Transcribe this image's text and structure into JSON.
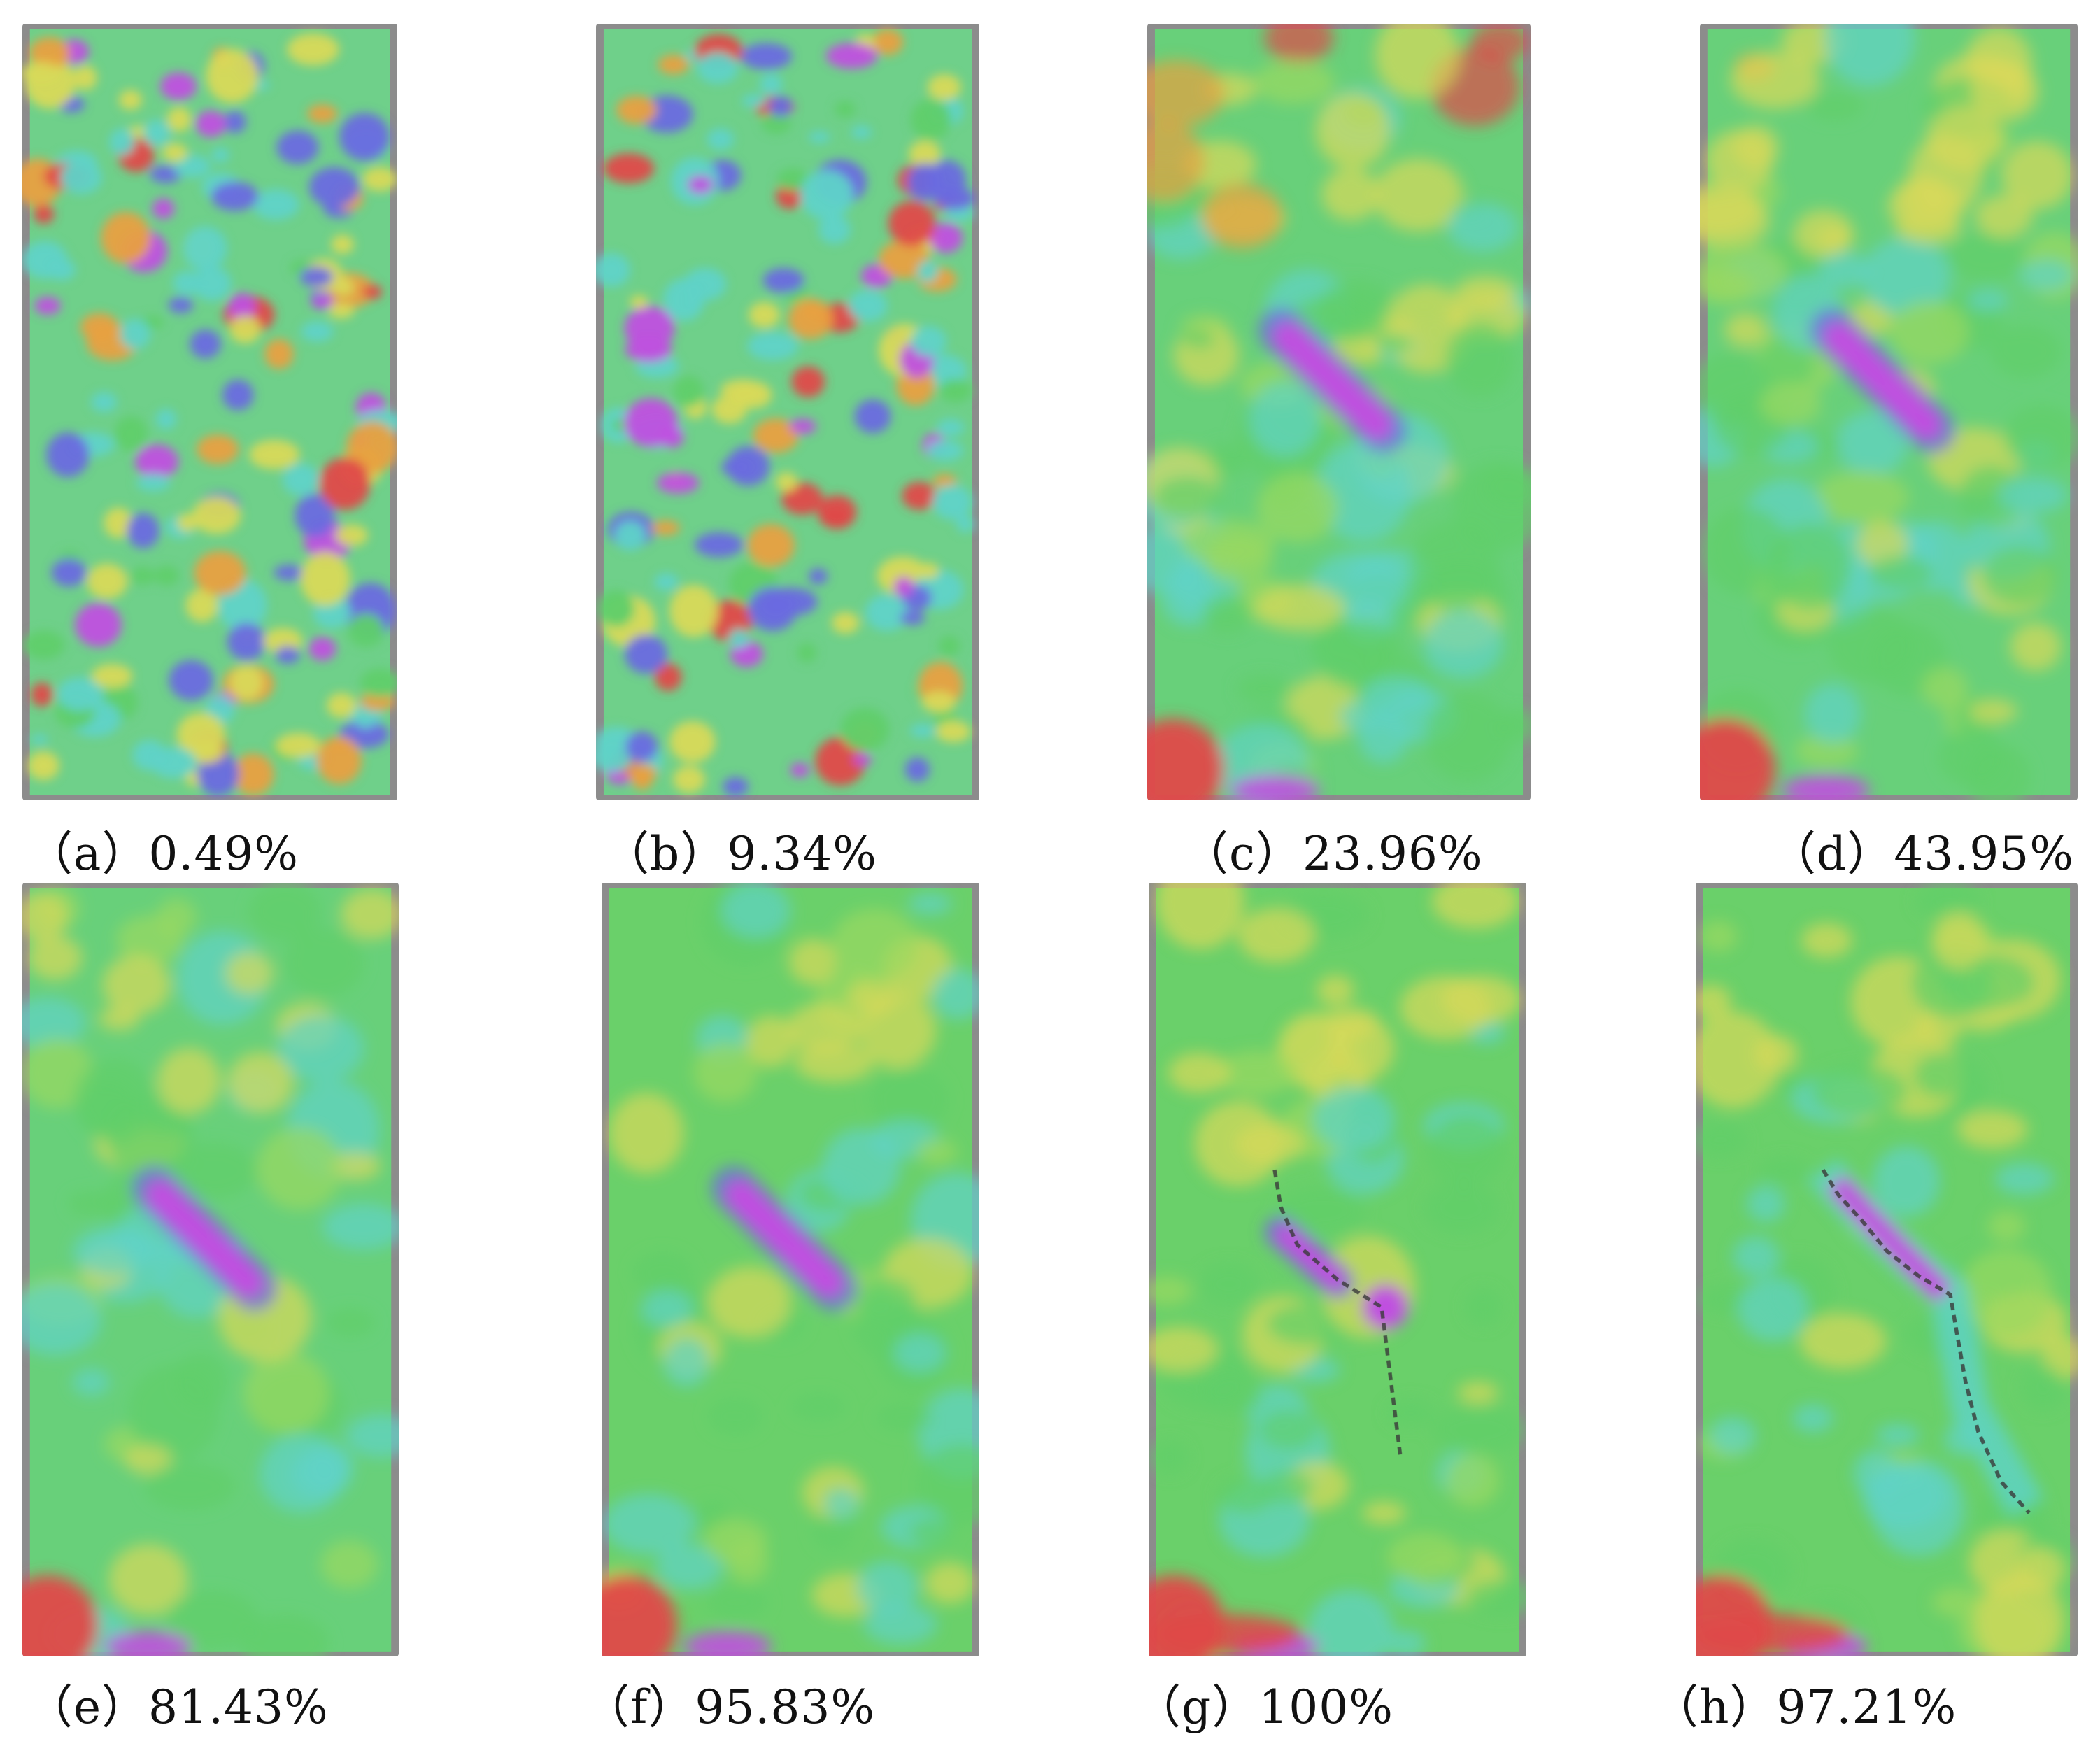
{
  "panels": [
    {
      "id": "a",
      "label": "（a）0.49%",
      "stage": 0
    },
    {
      "id": "b",
      "label": "（b）9.34%",
      "stage": 1
    },
    {
      "id": "c",
      "label": "（c）23.96%",
      "stage": 2
    },
    {
      "id": "d",
      "label": "（d）43.95%",
      "stage": 3
    },
    {
      "id": "e",
      "label": "（e）81.43%",
      "stage": 4
    },
    {
      "id": "f",
      "label": "（f）95.83%",
      "stage": 5
    },
    {
      "id": "g",
      "label": "（g）100%",
      "stage": 6
    },
    {
      "id": "h",
      "label": "（h）97.21%",
      "stage": 7
    }
  ],
  "colors": {
    "frame": "#8c8c8c",
    "green": "#5fcf6a",
    "cyan": "#5fd3c8",
    "yellow": "#d8d95a",
    "orange": "#e8a040",
    "red": "#e04848",
    "blue": "#6a6ae0",
    "magenta": "#c050e0",
    "crack": "#3a3a3a"
  }
}
